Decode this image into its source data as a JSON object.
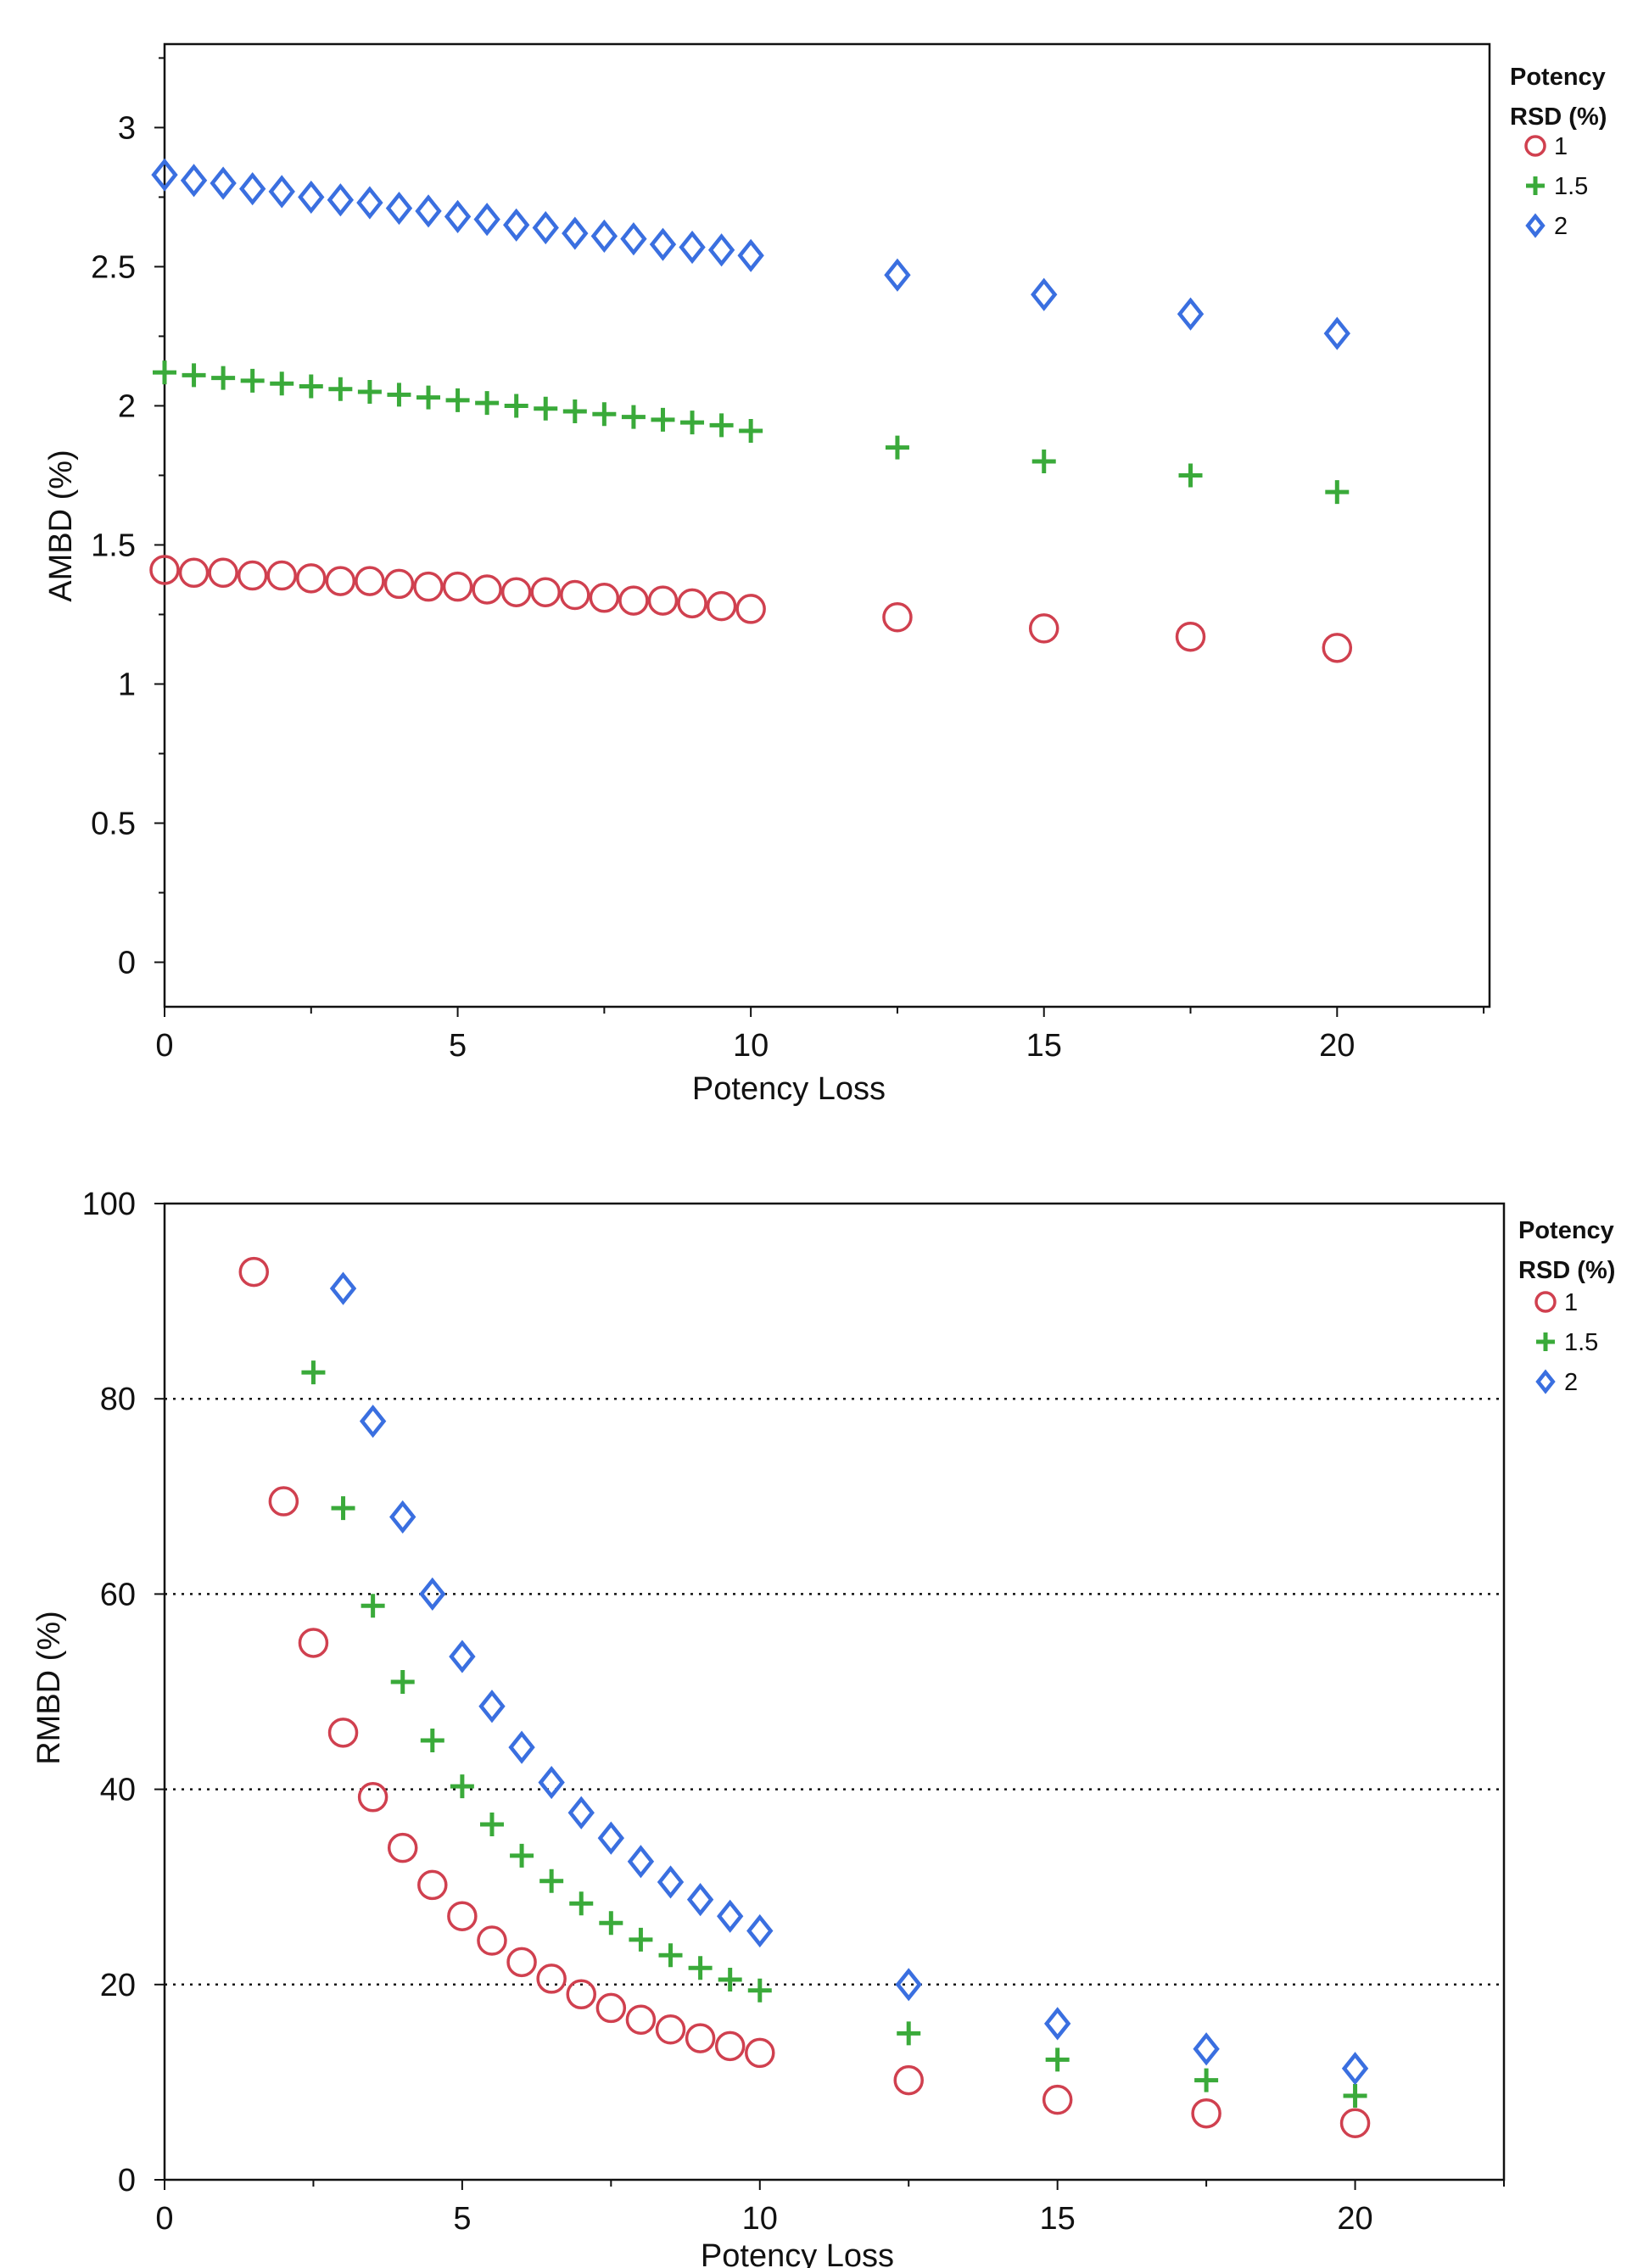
{
  "colors": {
    "s1": "#d0404f",
    "s15": "#3aaa3a",
    "s2": "#3a6fe0"
  },
  "chart_data": [
    {
      "type": "scatter",
      "xlabel": "Potency Loss",
      "ylabel": "AMBD (%)",
      "xlim": [
        0,
        22.6
      ],
      "ylim": [
        -0.16,
        3.3
      ],
      "xticks": [
        "0",
        "5",
        "10",
        "15",
        "20"
      ],
      "yticks": [
        "0",
        "0.5",
        "1",
        "1.5",
        "2",
        "2.5",
        "3"
      ],
      "grid": false,
      "legend_title": [
        "Potency",
        "RSD (%)"
      ],
      "legend_position": "right",
      "x": [
        0,
        0.5,
        1,
        1.5,
        2,
        2.5,
        3,
        3.5,
        4,
        4.5,
        5,
        5.5,
        6,
        6.5,
        7,
        7.5,
        8,
        8.5,
        9,
        9.5,
        10,
        12.5,
        15,
        17.5,
        20
      ],
      "series": [
        {
          "name": "1",
          "marker": "circle",
          "values": [
            1.41,
            1.4,
            1.4,
            1.39,
            1.39,
            1.38,
            1.37,
            1.37,
            1.36,
            1.35,
            1.35,
            1.34,
            1.33,
            1.33,
            1.32,
            1.31,
            1.3,
            1.3,
            1.29,
            1.28,
            1.27,
            1.24,
            1.2,
            1.17,
            1.13
          ]
        },
        {
          "name": "1.5",
          "marker": "plus",
          "values": [
            2.12,
            2.11,
            2.1,
            2.09,
            2.08,
            2.07,
            2.06,
            2.05,
            2.04,
            2.03,
            2.02,
            2.01,
            2.0,
            1.99,
            1.98,
            1.97,
            1.96,
            1.95,
            1.94,
            1.93,
            1.91,
            1.85,
            1.8,
            1.75,
            1.69
          ]
        },
        {
          "name": "2",
          "marker": "diamond",
          "values": [
            2.83,
            2.81,
            2.8,
            2.78,
            2.77,
            2.75,
            2.74,
            2.73,
            2.71,
            2.7,
            2.68,
            2.67,
            2.65,
            2.64,
            2.62,
            2.61,
            2.6,
            2.58,
            2.57,
            2.56,
            2.54,
            2.47,
            2.4,
            2.33,
            2.26
          ]
        }
      ]
    },
    {
      "type": "scatter",
      "xlabel": "Potency Loss",
      "ylabel": "RMBD (%)",
      "xlim": [
        0,
        22.5
      ],
      "ylim": [
        0,
        100
      ],
      "xticks": [
        "0",
        "5",
        "10",
        "15",
        "20"
      ],
      "yticks": [
        "0",
        "20",
        "40",
        "60",
        "80",
        "100"
      ],
      "grid": "dotted horizontal at 20, 40, 60, 80",
      "legend_title": [
        "Potency",
        "RSD (%)"
      ],
      "legend_position": "right",
      "x": [
        0,
        0.5,
        1,
        1.5,
        2,
        2.5,
        3,
        3.5,
        4,
        4.5,
        5,
        5.5,
        6,
        6.5,
        7,
        7.5,
        8,
        8.5,
        9,
        9.5,
        10,
        12.5,
        15,
        17.5,
        20
      ],
      "series": [
        {
          "name": "1",
          "marker": "circle",
          "values": [
            null,
            null,
            null,
            93,
            69.5,
            55,
            45.8,
            39.2,
            34,
            30.2,
            27,
            24.5,
            22.3,
            20.6,
            19,
            17.6,
            16.4,
            15.4,
            14.5,
            13.7,
            13,
            10.2,
            8.2,
            6.8,
            5.8
          ]
        },
        {
          "name": "1.5",
          "marker": "plus",
          "values": [
            null,
            null,
            null,
            null,
            null,
            82.7,
            68.8,
            58.8,
            51,
            45,
            40.3,
            36.4,
            33.2,
            30.6,
            28.3,
            26.3,
            24.6,
            23,
            21.7,
            20.5,
            19.4,
            15,
            12.3,
            10.2,
            8.6
          ]
        },
        {
          "name": "2",
          "marker": "diamond",
          "values": [
            null,
            null,
            null,
            null,
            null,
            null,
            91.3,
            77.7,
            67.9,
            60,
            53.6,
            48.5,
            44.3,
            40.7,
            37.6,
            35,
            32.6,
            30.5,
            28.7,
            27,
            25.5,
            20,
            16,
            13.4,
            11.4
          ]
        }
      ]
    }
  ]
}
